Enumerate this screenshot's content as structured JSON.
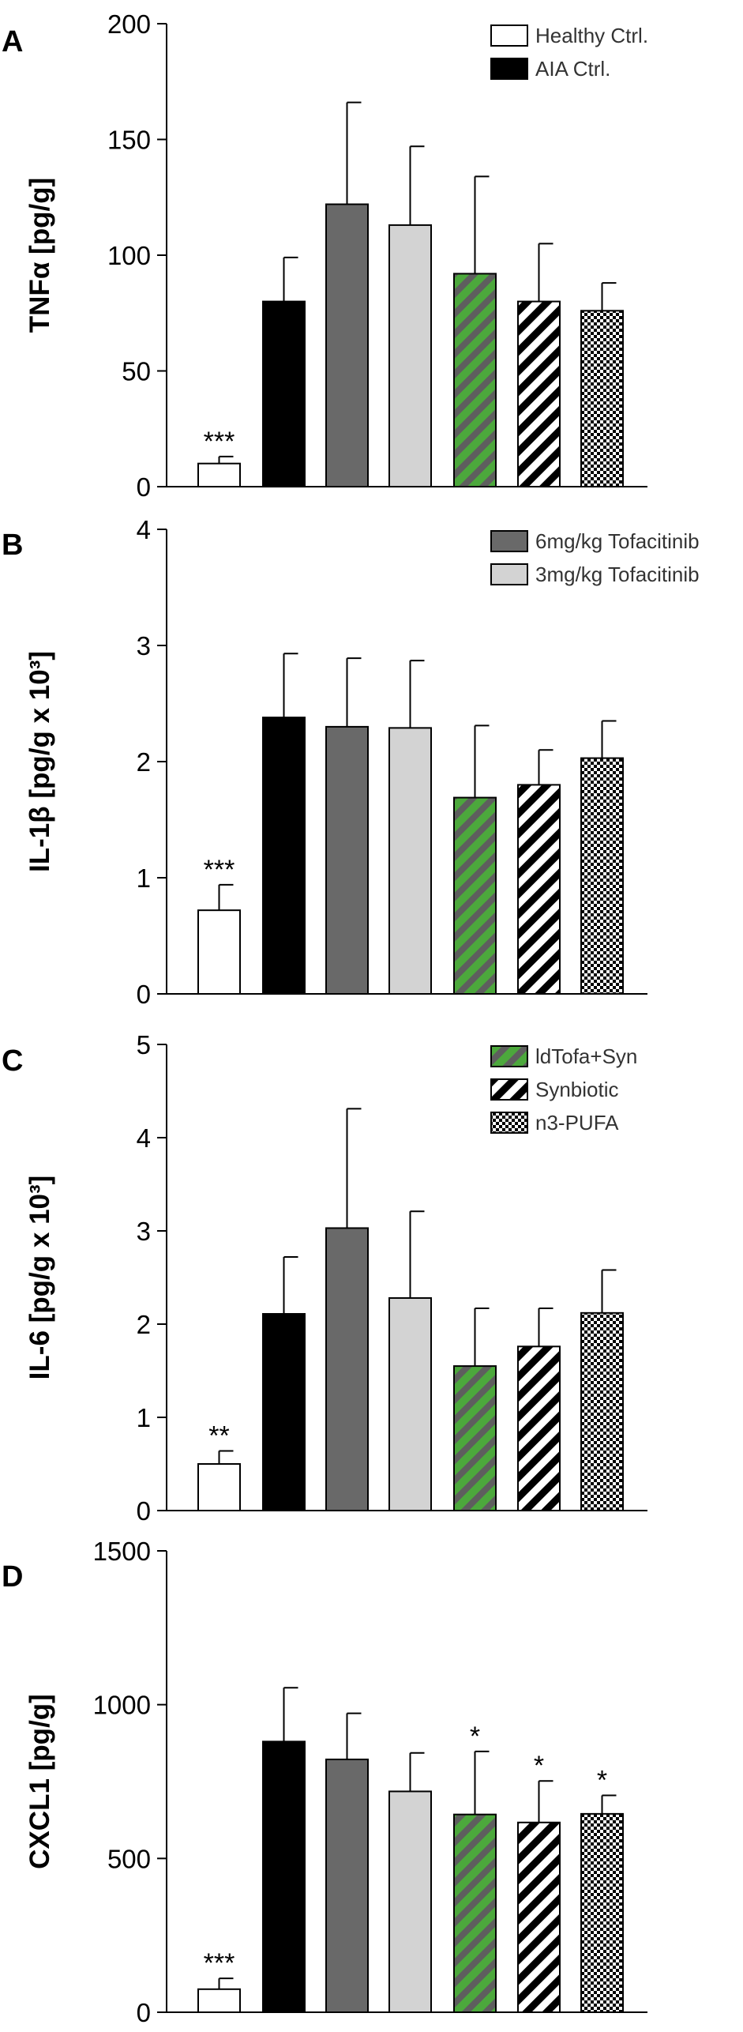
{
  "groups": [
    {
      "key": "healthy",
      "label": "Healthy Ctrl.",
      "fill": "#ffffff",
      "pattern": "none"
    },
    {
      "key": "aia",
      "label": "AIA Ctrl.",
      "fill": "#000000",
      "pattern": "none"
    },
    {
      "key": "tofa6",
      "label": "6mg/kg Tofacitinib",
      "fill": "#696969",
      "pattern": "none"
    },
    {
      "key": "tofa3",
      "label": "3mg/kg Tofacitinib",
      "fill": "#d3d3d3",
      "pattern": "none"
    },
    {
      "key": "ldtofa",
      "label": "ldTofa+Syn",
      "fill": "#4ca83c",
      "pattern": "green-stripes"
    },
    {
      "key": "synbiotic",
      "label": "Synbiotic",
      "fill": "#ffffff",
      "pattern": "black-stripes"
    },
    {
      "key": "n3pufa",
      "label": "n3-PUFA",
      "fill": "#ffffff",
      "pattern": "checker"
    }
  ],
  "chart_data": [
    {
      "type": "bar",
      "panel": "A",
      "ylabel": "TNFα [pg/g]",
      "ylim": [
        0,
        200
      ],
      "yticks": [
        0,
        50,
        100,
        150,
        200
      ],
      "categories": [
        "Healthy Ctrl.",
        "AIA Ctrl.",
        "6mg/kg Tofacitinib",
        "3mg/kg Tofacitinib",
        "ldTofa+Syn",
        "Synbiotic",
        "n3-PUFA"
      ],
      "values": [
        10,
        80,
        122,
        113,
        92,
        80,
        76
      ],
      "errors": [
        3,
        19,
        44,
        34,
        42,
        25,
        12
      ],
      "significance": [
        "***",
        "",
        "",
        "",
        "",
        "",
        ""
      ],
      "legend_groups": [
        0,
        1
      ],
      "legend_position": "top-right"
    },
    {
      "type": "bar",
      "panel": "B",
      "ylabel": "IL-1β [pg/g x 10³]",
      "ylim": [
        0,
        4
      ],
      "yticks": [
        0,
        1,
        2,
        3,
        4
      ],
      "categories": [
        "Healthy Ctrl.",
        "AIA Ctrl.",
        "6mg/kg Tofacitinib",
        "3mg/kg Tofacitinib",
        "ldTofa+Syn",
        "Synbiotic",
        "n3-PUFA"
      ],
      "values": [
        0.72,
        2.38,
        2.3,
        2.29,
        1.69,
        1.8,
        2.03
      ],
      "errors": [
        0.22,
        0.55,
        0.59,
        0.58,
        0.62,
        0.3,
        0.32
      ],
      "significance": [
        "***",
        "",
        "",
        "",
        "",
        "",
        ""
      ],
      "legend_groups": [
        2,
        3
      ],
      "legend_position": "top-right"
    },
    {
      "type": "bar",
      "panel": "C",
      "ylabel": "IL-6 [pg/g x 10³]",
      "ylim": [
        0,
        5
      ],
      "yticks": [
        0,
        1,
        2,
        3,
        4,
        5
      ],
      "categories": [
        "Healthy Ctrl.",
        "AIA Ctrl.",
        "6mg/kg Tofacitinib",
        "3mg/kg Tofacitinib",
        "ldTofa+Syn",
        "Synbiotic",
        "n3-PUFA"
      ],
      "values": [
        0.5,
        2.11,
        3.03,
        2.28,
        1.55,
        1.76,
        2.12
      ],
      "errors": [
        0.14,
        0.61,
        1.28,
        0.93,
        0.62,
        0.41,
        0.46
      ],
      "significance": [
        "**",
        "",
        "",
        "",
        "",
        "",
        ""
      ],
      "legend_groups": [
        4,
        5,
        6
      ],
      "legend_position": "top-right"
    },
    {
      "type": "bar",
      "panel": "D",
      "ylabel": "CXCL1 [pg/g]",
      "ylim": [
        0,
        1500
      ],
      "yticks": [
        0,
        500,
        1000,
        1500
      ],
      "categories": [
        "Healthy Ctrl.",
        "AIA Ctrl.",
        "6mg/kg Tofacitinib",
        "3mg/kg Tofacitinib",
        "ldTofa+Syn",
        "Synbiotic",
        "n3-PUFA"
      ],
      "values": [
        75,
        880,
        822,
        718,
        643,
        617,
        645
      ],
      "errors": [
        35,
        175,
        150,
        125,
        205,
        135,
        60
      ],
      "significance": [
        "***",
        "",
        "",
        "",
        "*",
        "*",
        "*"
      ],
      "legend_groups": [],
      "legend_position": "none"
    }
  ]
}
